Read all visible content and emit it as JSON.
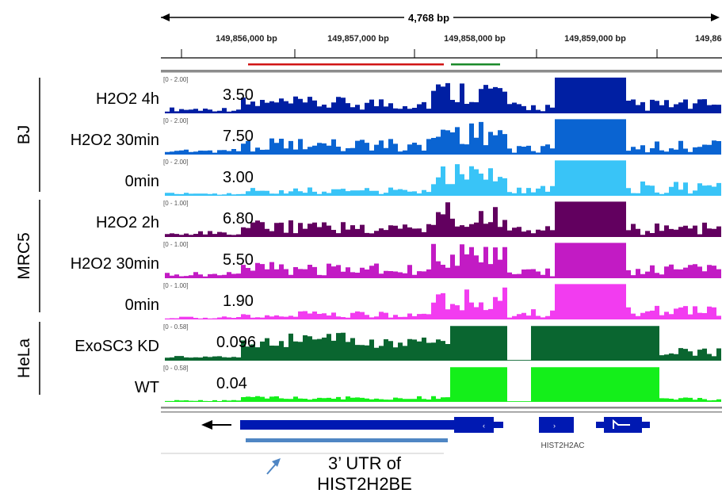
{
  "locus": {
    "span_label": "4,768 bp",
    "ticks": [
      "149,856,000 bp",
      "149,857,000 bp",
      "149,858,000 bp",
      "149,859,000 bp",
      "149,860,0"
    ]
  },
  "tracks": [
    {
      "group": "BJ",
      "label": "H2O2 4h",
      "value": "3.50",
      "range": "[0 - 2.00]",
      "color": "#001fa3"
    },
    {
      "group": "BJ",
      "label": "H2O2 30min",
      "value": "7.50",
      "range": "[0 - 2.00]",
      "color": "#0a64d2"
    },
    {
      "group": "BJ",
      "label": "0min",
      "value": "3.00",
      "range": "[0 - 2.00]",
      "color": "#39c4f7"
    },
    {
      "group": "MRC5",
      "label": "H2O2 2h",
      "value": "6.80",
      "range": "[0 - 1.00]",
      "color": "#62005f"
    },
    {
      "group": "MRC5",
      "label": "H2O2 30min",
      "value": "5.50",
      "range": "[0 - 1.00]",
      "color": "#c21bc4"
    },
    {
      "group": "MRC5",
      "label": "0min",
      "value": "1.90",
      "range": "[0 - 1.00]",
      "color": "#f23cf0"
    },
    {
      "group": "HeLa",
      "label": "ExoSC3 KD",
      "value": "0.096",
      "range": "[0 - 0.58]",
      "color": "#0a6630"
    },
    {
      "group": "HeLa",
      "label": "WT",
      "value": "0.04",
      "range": "[0 - 0.58]",
      "color": "#14ef1a"
    }
  ],
  "groups": [
    "BJ",
    "MRC5",
    "HeLa"
  ],
  "genes": {
    "gene_label": "HIST2H2AC",
    "utr_annotation": [
      "3’ UTR of",
      "HIST2H2BE"
    ]
  },
  "colors": {
    "gene": "#0019b2",
    "utr_bar": "#4f86c4",
    "arrow": "#4f86c4",
    "red_bar": "#d01515",
    "green_bar": "#1a8a2a"
  }
}
